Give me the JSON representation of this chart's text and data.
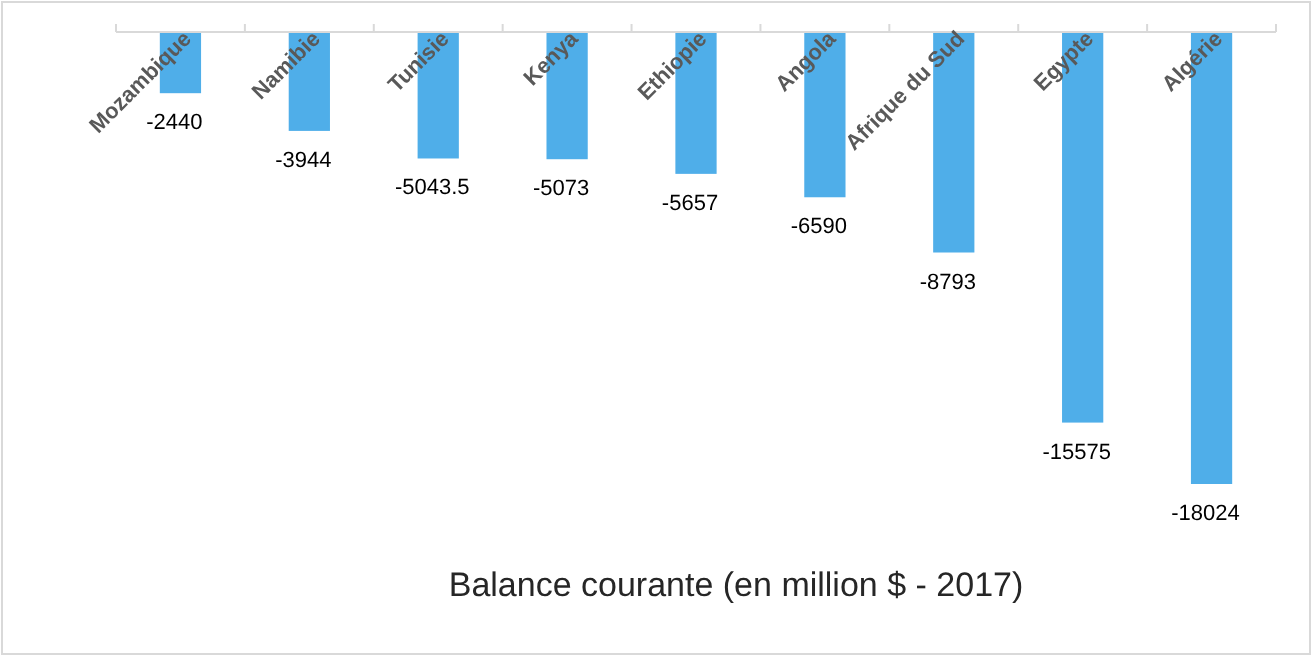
{
  "chart_data": {
    "type": "bar",
    "title": "Balance courante (en million $ - 2017)",
    "categories": [
      "Mozambique",
      "Namibie",
      "Tunisie",
      "Kenya",
      "Ethiopie",
      "Angola",
      "Afrique du Sud",
      "Egypte",
      "Algérie"
    ],
    "values": [
      -2440,
      -3944,
      -5043.5,
      -5073,
      -5657,
      -6590,
      -8793,
      -15575,
      -18024
    ],
    "color": "#4faee9",
    "data_labels": true
  }
}
